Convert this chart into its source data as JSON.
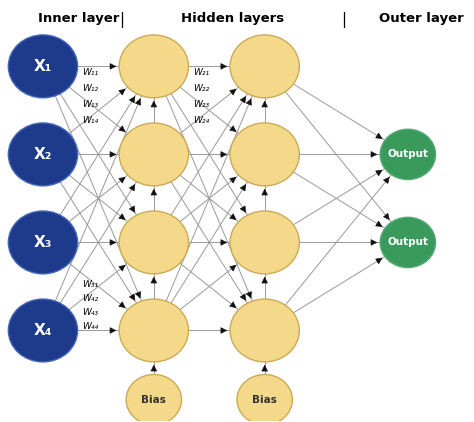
{
  "title_inner": "Inner layer",
  "title_hidden": "Hidden layers",
  "title_outer": "Outer layer",
  "input_color": "#1e3a8a",
  "hidden_color": "#f5d98b",
  "output_color": "#3a9a5c",
  "edge_color": "#999999",
  "input_labels": [
    "X₁",
    "X₂",
    "X₃",
    "X₄"
  ],
  "output_labels": [
    "Output",
    "Output"
  ],
  "bias_label": "Bias",
  "w_from_x1": [
    "W₁₁",
    "W₁₂",
    "W₁₃",
    "W₁₄"
  ],
  "w_from_x4": [
    "W₃₁",
    "W₄₂",
    "W₄₃",
    "W₄₄"
  ],
  "w_from_h1": [
    "W₂₁",
    "W₂₂",
    "W₂₃",
    "W₂₄"
  ]
}
